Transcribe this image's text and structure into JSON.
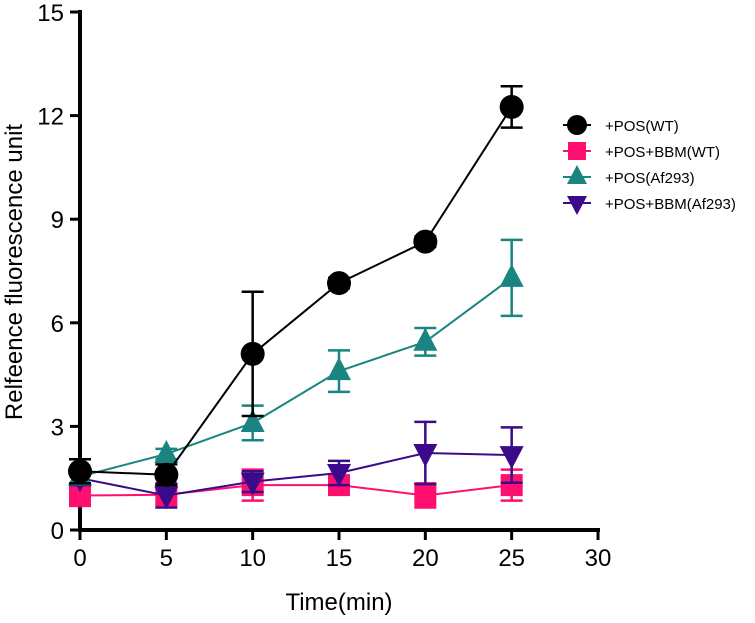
{
  "chart_data": {
    "type": "line",
    "title": "",
    "xlabel": "Time(min)",
    "ylabel": "Relfeence fluorescence unit",
    "xlim": [
      0,
      30
    ],
    "ylim": [
      0,
      15
    ],
    "xticks": [
      0,
      5,
      10,
      15,
      20,
      25,
      30
    ],
    "yticks": [
      0,
      3,
      6,
      9,
      12,
      15
    ],
    "grid": false,
    "legend_position": "right",
    "x": [
      0,
      5,
      10,
      15,
      20,
      25
    ],
    "series": [
      {
        "name": "+POS(WT)",
        "color": "#000000",
        "marker": "circle",
        "values": [
          1.7,
          1.6,
          5.1,
          7.15,
          8.35,
          12.25
        ],
        "errors": [
          0.35,
          0.3,
          1.8,
          0.15,
          0.15,
          0.6
        ]
      },
      {
        "name": "+POS+BBM(WT)",
        "color": "#ff0f6f",
        "marker": "square",
        "values": [
          1.0,
          1.02,
          1.3,
          1.3,
          1.0,
          1.3
        ],
        "errors": [
          0.3,
          0.3,
          0.45,
          0.2,
          0.35,
          0.45
        ]
      },
      {
        "name": "+POS(Af293)",
        "color": "#1a8580",
        "marker": "triangle-up",
        "values": [
          1.55,
          2.2,
          3.1,
          4.6,
          5.45,
          7.3
        ],
        "errors": [
          0.2,
          0.15,
          0.5,
          0.6,
          0.4,
          1.1
        ]
      },
      {
        "name": "+POS+BBM(Af293)",
        "color": "#3b0a8a",
        "marker": "triangle-down",
        "values": [
          1.5,
          1.0,
          1.4,
          1.65,
          2.23,
          2.17
        ],
        "errors": [
          0.2,
          0.35,
          0.3,
          0.35,
          0.9,
          0.8
        ]
      }
    ]
  }
}
